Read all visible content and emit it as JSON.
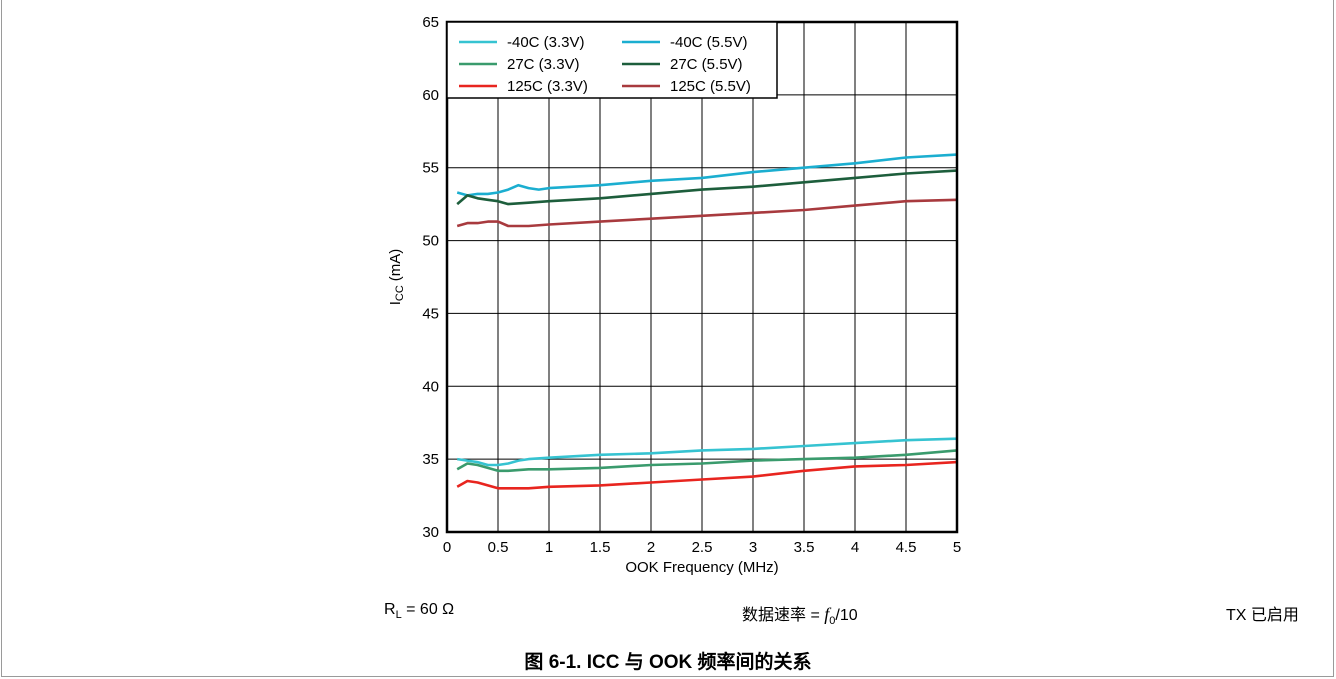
{
  "chart_data": {
    "type": "line",
    "xlabel": "OOK Frequency (MHz)",
    "ylabel_main": "I",
    "ylabel_sub": "CC",
    "ylabel_unit": "(mA)",
    "xlim": [
      0,
      5
    ],
    "ylim": [
      30,
      65
    ],
    "x_ticks": [
      "0",
      "0.5",
      "1",
      "1.5",
      "2",
      "2.5",
      "3",
      "3.5",
      "4",
      "4.5",
      "5"
    ],
    "y_ticks": [
      "30",
      "35",
      "40",
      "45",
      "50",
      "55",
      "60",
      "65"
    ],
    "grid": true,
    "legend_position": "top-left",
    "series": [
      {
        "name": "-40C (3.3V)",
        "color": "#36c3d1",
        "points": [
          [
            0.1,
            35.0
          ],
          [
            0.2,
            34.9
          ],
          [
            0.3,
            34.8
          ],
          [
            0.4,
            34.6
          ],
          [
            0.5,
            34.6
          ],
          [
            0.6,
            34.7
          ],
          [
            0.7,
            34.9
          ],
          [
            0.8,
            35.0
          ],
          [
            1.0,
            35.1
          ],
          [
            1.5,
            35.3
          ],
          [
            2.0,
            35.4
          ],
          [
            2.5,
            35.6
          ],
          [
            3.0,
            35.7
          ],
          [
            3.5,
            35.9
          ],
          [
            4.0,
            36.1
          ],
          [
            4.5,
            36.3
          ],
          [
            5.0,
            36.4
          ]
        ]
      },
      {
        "name": "-40C (5.5V)",
        "color": "#1baed0",
        "points": [
          [
            0.1,
            53.3
          ],
          [
            0.2,
            53.1
          ],
          [
            0.3,
            53.2
          ],
          [
            0.4,
            53.2
          ],
          [
            0.5,
            53.3
          ],
          [
            0.6,
            53.5
          ],
          [
            0.7,
            53.8
          ],
          [
            0.8,
            53.6
          ],
          [
            0.9,
            53.5
          ],
          [
            1.0,
            53.6
          ],
          [
            1.5,
            53.8
          ],
          [
            2.0,
            54.1
          ],
          [
            2.5,
            54.3
          ],
          [
            3.0,
            54.7
          ],
          [
            3.5,
            55.0
          ],
          [
            4.0,
            55.3
          ],
          [
            4.5,
            55.7
          ],
          [
            5.0,
            55.9
          ]
        ]
      },
      {
        "name": "27C (3.3V)",
        "color": "#3a9b6d",
        "points": [
          [
            0.1,
            34.3
          ],
          [
            0.2,
            34.7
          ],
          [
            0.3,
            34.6
          ],
          [
            0.4,
            34.4
          ],
          [
            0.5,
            34.2
          ],
          [
            0.6,
            34.2
          ],
          [
            0.8,
            34.3
          ],
          [
            1.0,
            34.3
          ],
          [
            1.5,
            34.4
          ],
          [
            2.0,
            34.6
          ],
          [
            2.5,
            34.7
          ],
          [
            3.0,
            34.9
          ],
          [
            3.5,
            35.0
          ],
          [
            4.0,
            35.1
          ],
          [
            4.5,
            35.3
          ],
          [
            5.0,
            35.6
          ]
        ]
      },
      {
        "name": "27C (5.5V)",
        "color": "#1d5e3c",
        "points": [
          [
            0.1,
            52.5
          ],
          [
            0.2,
            53.1
          ],
          [
            0.3,
            52.9
          ],
          [
            0.4,
            52.8
          ],
          [
            0.5,
            52.7
          ],
          [
            0.6,
            52.5
          ],
          [
            0.8,
            52.6
          ],
          [
            1.0,
            52.7
          ],
          [
            1.5,
            52.9
          ],
          [
            2.0,
            53.2
          ],
          [
            2.5,
            53.5
          ],
          [
            3.0,
            53.7
          ],
          [
            3.5,
            54.0
          ],
          [
            4.0,
            54.3
          ],
          [
            4.5,
            54.6
          ],
          [
            5.0,
            54.8
          ]
        ]
      },
      {
        "name": "125C (3.3V)",
        "color": "#e8251f",
        "points": [
          [
            0.1,
            33.1
          ],
          [
            0.2,
            33.5
          ],
          [
            0.3,
            33.4
          ],
          [
            0.4,
            33.2
          ],
          [
            0.5,
            33.0
          ],
          [
            0.6,
            33.0
          ],
          [
            0.8,
            33.0
          ],
          [
            1.0,
            33.1
          ],
          [
            1.5,
            33.2
          ],
          [
            2.0,
            33.4
          ],
          [
            2.5,
            33.6
          ],
          [
            3.0,
            33.8
          ],
          [
            3.5,
            34.2
          ],
          [
            4.0,
            34.5
          ],
          [
            4.5,
            34.6
          ],
          [
            5.0,
            34.8
          ]
        ]
      },
      {
        "name": "125C (5.5V)",
        "color": "#a83a3e",
        "points": [
          [
            0.1,
            51.0
          ],
          [
            0.2,
            51.2
          ],
          [
            0.3,
            51.2
          ],
          [
            0.4,
            51.3
          ],
          [
            0.5,
            51.3
          ],
          [
            0.6,
            51.0
          ],
          [
            0.7,
            51.0
          ],
          [
            0.8,
            51.0
          ],
          [
            1.0,
            51.1
          ],
          [
            1.5,
            51.3
          ],
          [
            2.0,
            51.5
          ],
          [
            2.5,
            51.7
          ],
          [
            3.0,
            51.9
          ],
          [
            3.5,
            52.1
          ],
          [
            4.0,
            52.4
          ],
          [
            4.5,
            52.7
          ],
          [
            5.0,
            52.8
          ]
        ]
      }
    ]
  },
  "conditions": {
    "rl_main": "R",
    "rl_sub": "L",
    "rl_value": " = 60 Ω",
    "rate_label": "数据速率 = ",
    "rate_f": "f",
    "rate_sub": "0",
    "rate_tail": "/10",
    "tx": "TX 已启用"
  },
  "caption": "图 6-1. ICC 与 OOK 频率间的关系"
}
